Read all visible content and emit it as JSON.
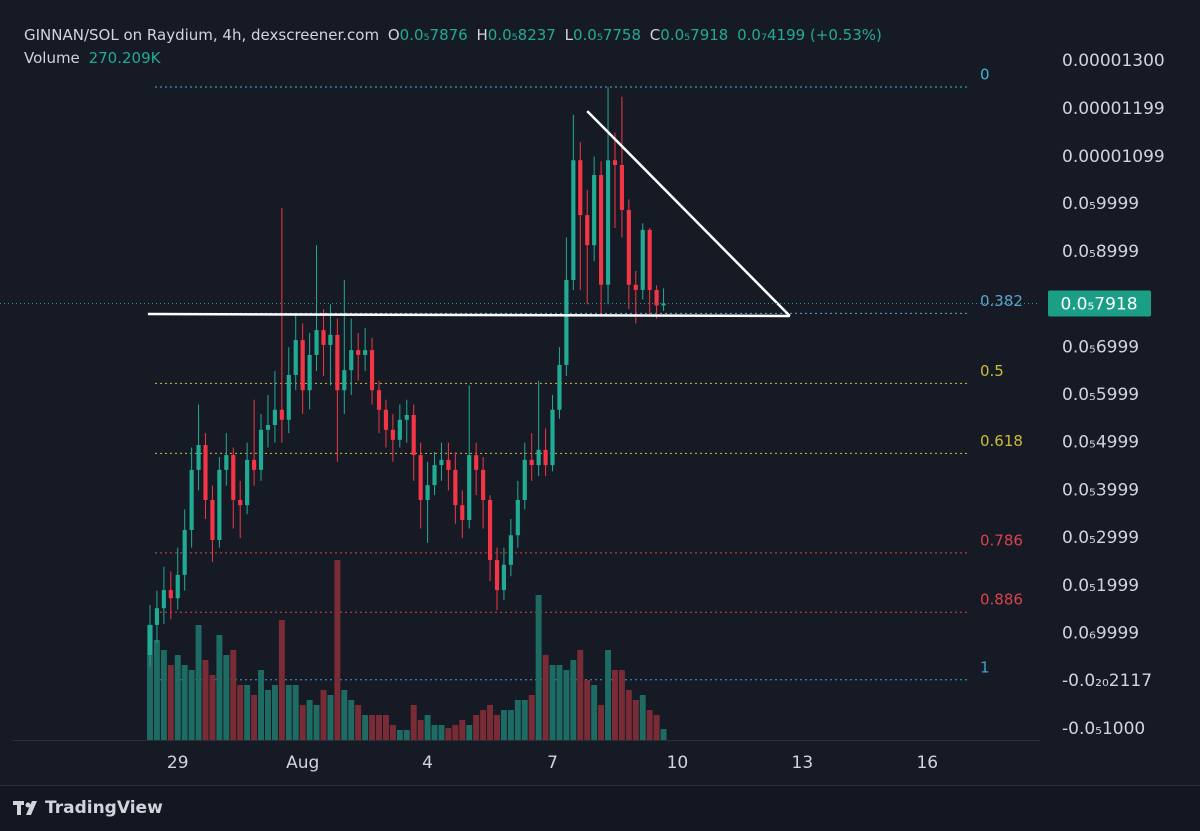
{
  "header": {
    "title": "GINNAN/SOL on Raydium, 4h, dexscreener.com",
    "o_label": "O",
    "o_value": "0.0₅7876",
    "h_label": "H",
    "h_value": "0.0₅8237",
    "l_label": "L",
    "l_value": "0.0₅7758",
    "c_label": "C",
    "c_value": "0.0₅7918",
    "change": "0.0₇4199 (+0.53%)",
    "volume_label": "Volume",
    "volume_value": "270.209K"
  },
  "footer": {
    "brand": "TradingView"
  },
  "chart_data": {
    "type": "candlestick",
    "up_color": "#22ab94",
    "down_color": "#f23645",
    "volume_up_color": "#1d6b62",
    "volume_down_color": "#7a2c36",
    "xlim": [
      -21.61,
      128.24
    ],
    "xticks": [
      {
        "value": 4,
        "label": "29"
      },
      {
        "value": 22,
        "label": "Aug"
      },
      {
        "value": 40,
        "label": "4"
      },
      {
        "value": 58,
        "label": "7"
      },
      {
        "value": 76,
        "label": "10"
      },
      {
        "value": 94,
        "label": "13"
      },
      {
        "value": 112,
        "label": "16"
      }
    ],
    "ylim": [
      -1.232e-06,
      1.42786e-05
    ],
    "yticks": [
      {
        "value": 1.3e-05,
        "label": "0.00001300"
      },
      {
        "value": 1.199e-05,
        "label": "0.00001199"
      },
      {
        "value": 1.099e-05,
        "label": "0.00001099"
      },
      {
        "value": 9.999e-06,
        "label": "0.0₅9999"
      },
      {
        "value": 8.999e-06,
        "label": "0.0₅8999"
      },
      {
        "value": 6.999e-06,
        "label": "0.0₅6999"
      },
      {
        "value": 5.999e-06,
        "label": "0.0₅5999"
      },
      {
        "value": 4.999e-06,
        "label": "0.0₅4999"
      },
      {
        "value": 3.999e-06,
        "label": "0.0₅3999"
      },
      {
        "value": 2.999e-06,
        "label": "0.0₅2999"
      },
      {
        "value": 1.999e-06,
        "label": "0.0₅1999"
      },
      {
        "value": 9.999e-07,
        "label": "0.0₆9999"
      },
      {
        "value": -2.117e-21,
        "label": "-0.0₂₀2117"
      },
      {
        "value": -1e-06,
        "label": "-0.0₅1000"
      }
    ],
    "last_price": {
      "value": 7.918e-06,
      "label": "0.0₅7918",
      "color": "#1b9e86"
    },
    "open": [
      5.5e-07,
      1.18e-06,
      1.53e-06,
      1.91e-06,
      1.74e-06,
      2.23e-06,
      3.17e-06,
      4.43e-06,
      4.95e-06,
      3.8e-06,
      2.96e-06,
      4.43e-06,
      4.74e-06,
      3.8e-06,
      3.69e-06,
      4.64e-06,
      4.43e-06,
      5.27e-06,
      5.37e-06,
      5.69e-06,
      5.48e-06,
      6.42e-06,
      7.15e-06,
      6.1e-06,
      6.84e-06,
      7.36e-06,
      7.05e-06,
      7.26e-06,
      6.1e-06,
      6.52e-06,
      6.94e-06,
      6.84e-06,
      6.94e-06,
      6.1e-06,
      5.69e-06,
      5.27e-06,
      5.06e-06,
      5.48e-06,
      5.58e-06,
      4.74e-06,
      3.8e-06,
      4.11e-06,
      4.53e-06,
      4.64e-06,
      4.43e-06,
      3.69e-06,
      3.38e-06,
      4.74e-06,
      4.43e-06,
      3.8e-06,
      2.54e-06,
      1.91e-06,
      2.44e-06,
      3.06e-06,
      3.8e-06,
      4.64e-06,
      4.53e-06,
      4.85e-06,
      4.53e-06,
      5.69e-06,
      6.63e-06,
      8.41e-06,
      1.092e-05,
      9.77e-06,
      9.14e-06,
      1.061e-05,
      8.31e-06,
      1.092e-05,
      1.082e-05,
      9.88e-06,
      8.31e-06,
      8.2e-06,
      9.46e-06,
      8.2e-06,
      7.876e-06
    ],
    "high": [
      1.6e-06,
      1.9e-06,
      2.4e-06,
      2.3e-06,
      2.8e-06,
      3.6e-06,
      4.9e-06,
      5.8e-06,
      5.2e-06,
      4.1e-06,
      4.7e-06,
      5.2e-06,
      4.9e-06,
      4.2e-06,
      5e-06,
      5.9e-06,
      5.6e-06,
      6e-06,
      6.5e-06,
      9.92e-06,
      7e-06,
      7.7e-06,
      7.5e-06,
      7.3e-06,
      9.14e-06,
      7.8e-06,
      7.9e-06,
      7.6e-06,
      8.41e-06,
      7.6e-06,
      7.3e-06,
      7.4e-06,
      7.2e-06,
      6.3e-06,
      5.9e-06,
      5.6e-06,
      5.8e-06,
      5.9e-06,
      5.8e-06,
      5e-06,
      4.6e-06,
      4.8e-06,
      5e-06,
      5e-06,
      4.8e-06,
      4e-06,
      6.2e-06,
      5e-06,
      4.7e-06,
      3.9e-06,
      2.8e-06,
      2.8e-06,
      3.4e-06,
      4.2e-06,
      5e-06,
      5.2e-06,
      6.3e-06,
      5.3e-06,
      6e-06,
      7e-06,
      9.3e-06,
      1.187e-05,
      1.13e-05,
      1.03e-05,
      1.1e-05,
      1.09e-05,
      1.245e-05,
      1.15e-05,
      1.225e-05,
      1.01e-05,
      8.6e-06,
      9.6e-06,
      9.5e-06,
      8.3e-06,
      8.237e-06
    ],
    "low": [
      3e-07,
      8e-07,
      1.2e-06,
      1.3e-06,
      1.5e-06,
      1.9e-06,
      2.8e-06,
      4e-06,
      3.4e-06,
      2.5e-06,
      2.8e-06,
      4.1e-06,
      3.2e-06,
      3e-06,
      3.5e-06,
      4.1e-06,
      4.2e-06,
      4.9e-06,
      5e-06,
      5e-06,
      5.2e-06,
      6.1e-06,
      5.6e-06,
      5.7e-06,
      6.5e-06,
      6.4e-06,
      6.2e-06,
      4.6e-06,
      5.6e-06,
      6e-06,
      6.3e-06,
      6.5e-06,
      5.8e-06,
      5.2e-06,
      4.9e-06,
      4.6e-06,
      4.9e-06,
      5e-06,
      4.2e-06,
      3.2e-06,
      2.9e-06,
      3.9e-06,
      4.2e-06,
      4e-06,
      3.3e-06,
      3e-06,
      3.2e-06,
      3.9e-06,
      3.2e-06,
      2.1e-06,
      1.49e-06,
      1.7e-06,
      2.2e-06,
      2.8e-06,
      3.6e-06,
      4.2e-06,
      4.3e-06,
      4.3e-06,
      4.4e-06,
      5.5e-06,
      6.4e-06,
      8.2e-06,
      8.2e-06,
      7.9e-06,
      8.8e-06,
      7.7e-06,
      7.9e-06,
      9.5e-06,
      9.3e-06,
      7.8e-06,
      7.5e-06,
      8e-06,
      7.7e-06,
      7.6e-06,
      7.758e-06
    ],
    "close": [
      1.18e-06,
      1.53e-06,
      1.91e-06,
      1.74e-06,
      2.23e-06,
      3.17e-06,
      4.43e-06,
      4.95e-06,
      3.8e-06,
      2.96e-06,
      4.43e-06,
      4.74e-06,
      3.8e-06,
      3.69e-06,
      4.64e-06,
      4.43e-06,
      5.27e-06,
      5.37e-06,
      5.69e-06,
      5.48e-06,
      6.42e-06,
      7.15e-06,
      6.1e-06,
      6.84e-06,
      7.36e-06,
      7.05e-06,
      7.26e-06,
      6.1e-06,
      6.52e-06,
      6.94e-06,
      6.84e-06,
      6.94e-06,
      6.1e-06,
      5.69e-06,
      5.27e-06,
      5.06e-06,
      5.48e-06,
      5.58e-06,
      4.74e-06,
      3.8e-06,
      4.11e-06,
      4.53e-06,
      4.64e-06,
      4.43e-06,
      3.69e-06,
      3.38e-06,
      4.74e-06,
      4.43e-06,
      3.8e-06,
      2.54e-06,
      1.91e-06,
      2.44e-06,
      3.06e-06,
      3.8e-06,
      4.64e-06,
      4.53e-06,
      4.85e-06,
      4.53e-06,
      5.69e-06,
      6.63e-06,
      8.41e-06,
      1.092e-05,
      9.77e-06,
      9.14e-06,
      1.061e-05,
      8.31e-06,
      1.092e-05,
      1.082e-05,
      9.88e-06,
      8.31e-06,
      8.2e-06,
      9.46e-06,
      8.2e-06,
      7.876e-06,
      7.918e-06
    ],
    "volume": [
      2829000,
      2460000,
      2214000,
      1845000,
      2091000,
      1845000,
      1722000,
      2829000,
      1968000,
      1599000,
      2583000,
      2091000,
      2214000,
      1353000,
      1353000,
      1107000,
      1722000,
      1230000,
      1353000,
      2952000,
      1353000,
      1353000,
      861000,
      984000,
      861000,
      1230000,
      1107000,
      4428000,
      1230000,
      984000,
      861000,
      615000,
      615000,
      615000,
      615000,
      369000,
      246000,
      246000,
      861000,
      492000,
      615000,
      369000,
      369000,
      295200,
      369000,
      492000,
      369000,
      615000,
      738000,
      861000,
      615000,
      738000,
      738000,
      984000,
      984000,
      1107000,
      3567000,
      2091000,
      1845000,
      1845000,
      1722000,
      1968000,
      2214000,
      1476000,
      1353000,
      861000,
      2214000,
      1722000,
      1722000,
      1230000,
      984000,
      1107000,
      738000,
      615000,
      270209
    ],
    "volume_lim": [
      0,
      4551000
    ],
    "fib_levels": [
      {
        "level": 0,
        "price": 1.2455e-05,
        "color": "#3fb6d4"
      },
      {
        "level": 0.382,
        "price": 7.709e-06,
        "color": "#5aa5cc"
      },
      {
        "level": 0.5,
        "price": 6.243e-06,
        "color": "#cdbb3a"
      },
      {
        "level": 0.618,
        "price": 4.776e-06,
        "color": "#cdbb3a"
      },
      {
        "level": 0.786,
        "price": 2.689e-06,
        "color": "#d9424a"
      },
      {
        "level": 0.886,
        "price": 1.446e-06,
        "color": "#d9424a"
      },
      {
        "level": 1,
        "price": 3e-08,
        "color": "#3f9fd4"
      }
    ],
    "drawings": [
      {
        "x": [
          -0.3,
          92.2
        ],
        "y": [
          7.697e-06,
          7.655e-06
        ]
      },
      {
        "x": [
          63,
          92.2
        ],
        "y": [
          1.195e-05,
          7.655e-06
        ]
      }
    ]
  }
}
